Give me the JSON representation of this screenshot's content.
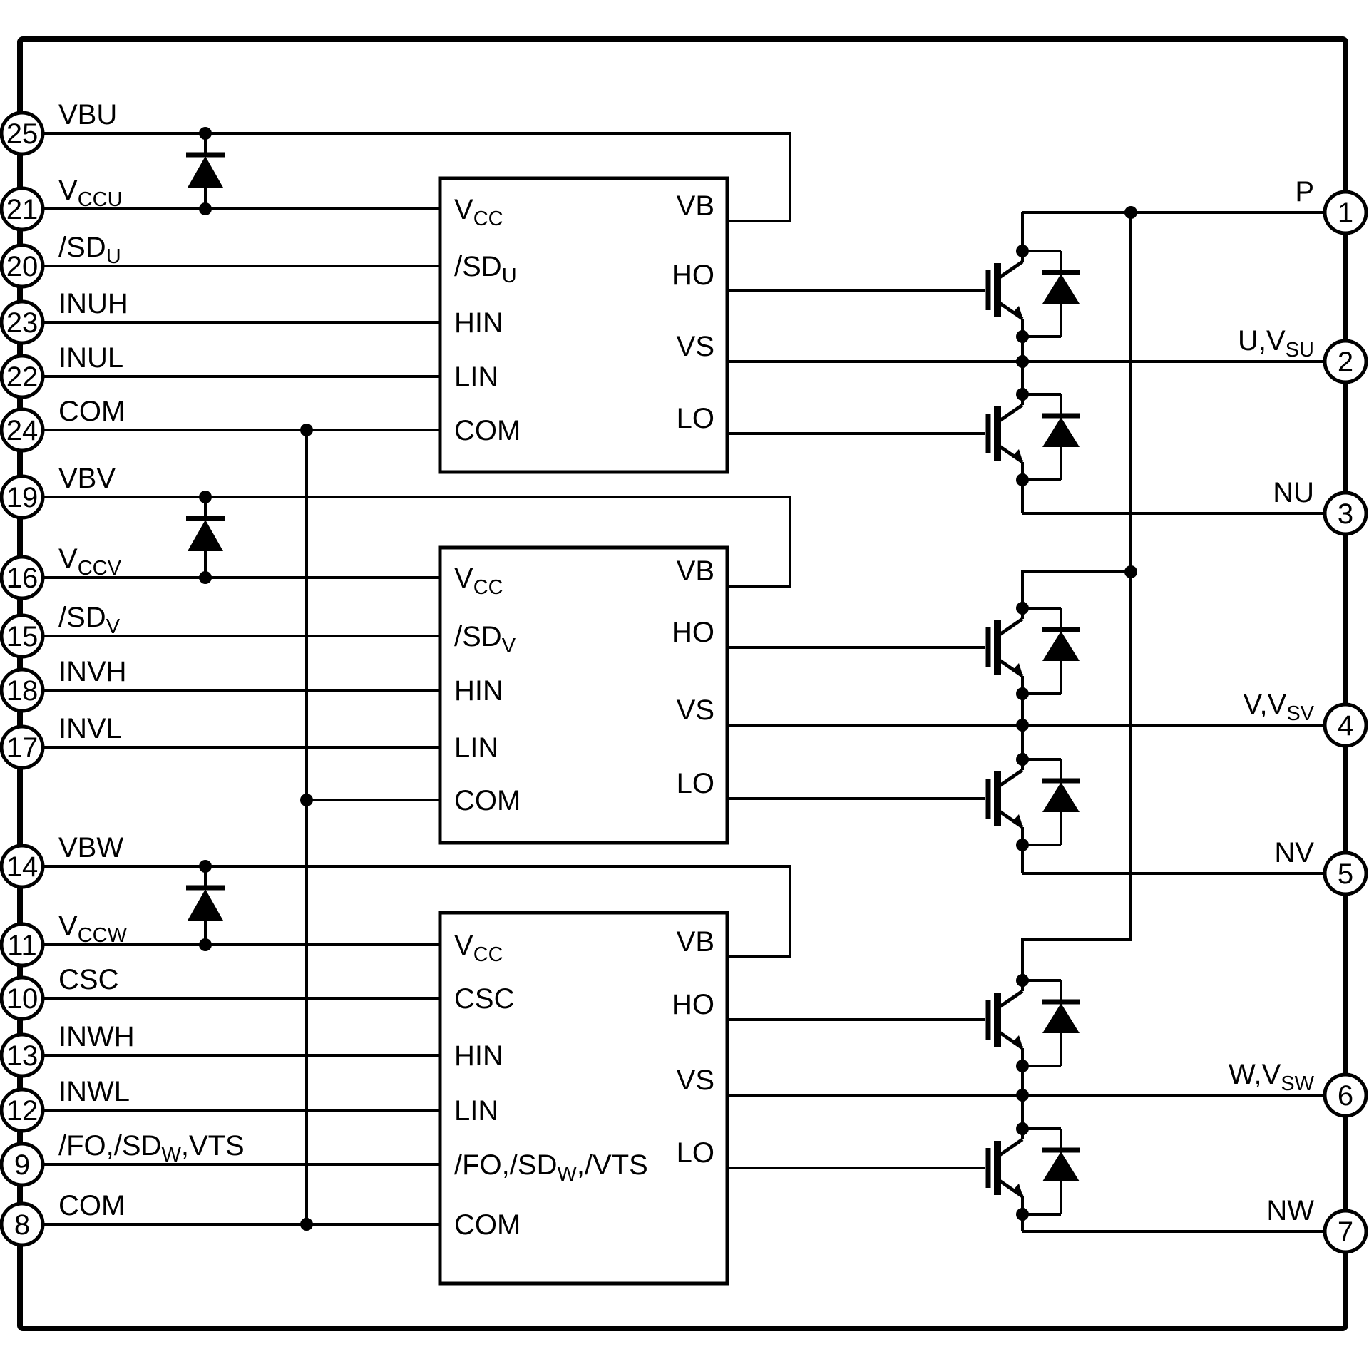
{
  "colors": {
    "ink": "#000000",
    "paper": "#ffffff"
  },
  "left_pins": [
    {
      "number": "25",
      "label": "VBU"
    },
    {
      "number": "21",
      "label": "V~CCU~"
    },
    {
      "number": "20",
      "label": "/SD~U~"
    },
    {
      "number": "23",
      "label": "INUH"
    },
    {
      "number": "22",
      "label": "INUL"
    },
    {
      "number": "24",
      "label": "COM"
    },
    {
      "number": "19",
      "label": "VBV"
    },
    {
      "number": "16",
      "label": "V~CCV~"
    },
    {
      "number": "15",
      "label": "/SD~V~"
    },
    {
      "number": "18",
      "label": "INVH"
    },
    {
      "number": "17",
      "label": "INVL"
    },
    {
      "number": "14",
      "label": "VBW"
    },
    {
      "number": "11",
      "label": "V~CCW~"
    },
    {
      "number": "10",
      "label": "CSC"
    },
    {
      "number": "13",
      "label": "INWH"
    },
    {
      "number": "12",
      "label": "INWL"
    },
    {
      "number": "9",
      "label": "/FO,/SD~W~,VTS"
    },
    {
      "number": "8",
      "label": "COM"
    }
  ],
  "right_pins": [
    {
      "number": "1",
      "label": "P"
    },
    {
      "number": "2",
      "label": "U,V~SU~"
    },
    {
      "number": "3",
      "label": "NU"
    },
    {
      "number": "4",
      "label": "V,V~SV~"
    },
    {
      "number": "5",
      "label": "NV"
    },
    {
      "number": "6",
      "label": "W,V~SW~"
    },
    {
      "number": "7",
      "label": "NW"
    }
  ],
  "driver_blocks": [
    {
      "name": "gate-driver-u",
      "left_pins": [
        "V~CC~",
        "/SD~U~",
        "HIN",
        "LIN",
        "COM"
      ],
      "right_pins": [
        "VB",
        "HO",
        "VS",
        "LO"
      ]
    },
    {
      "name": "gate-driver-v",
      "left_pins": [
        "V~CC~",
        "/SD~V~",
        "HIN",
        "LIN",
        "COM"
      ],
      "right_pins": [
        "VB",
        "HO",
        "VS",
        "LO"
      ]
    },
    {
      "name": "gate-driver-w",
      "left_pins": [
        "V~CC~",
        "CSC",
        "HIN",
        "LIN",
        "/FO,/SD~W~,/VTS",
        "COM"
      ],
      "right_pins": [
        "VB",
        "HO",
        "VS",
        "LO"
      ]
    }
  ]
}
